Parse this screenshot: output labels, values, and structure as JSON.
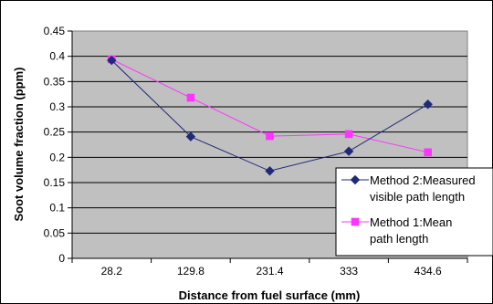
{
  "chart_data": {
    "type": "line",
    "categories": [
      "28.2",
      "129.8",
      "231.4",
      "333",
      "434.6"
    ],
    "series": [
      {
        "name": "Method 2:Measured visible path length",
        "name_lines": [
          "Method 2:Measured",
          "visible path length"
        ],
        "values": [
          0.392,
          0.241,
          0.173,
          0.212,
          0.305
        ],
        "color": "#1f2a78",
        "marker": "diamond"
      },
      {
        "name": "Method 1:Mean path length",
        "name_lines": [
          "Method 1:Mean",
          "path length"
        ],
        "values": [
          0.394,
          0.318,
          0.242,
          0.246,
          0.21
        ],
        "color": "#ff33ff",
        "marker": "square"
      }
    ],
    "xlabel": "Distance from fuel surface (mm)",
    "ylabel": "Soot volume fraction (ppm)",
    "ylim": [
      0,
      0.45
    ],
    "yticks": [
      "0",
      "0.05",
      "0.1",
      "0.15",
      "0.2",
      "0.25",
      "0.3",
      "0.35",
      "0.4",
      "0.45"
    ],
    "grid": true,
    "legend": "right",
    "plot_background": "#c0c0c0",
    "gridline_color": "#000000"
  }
}
